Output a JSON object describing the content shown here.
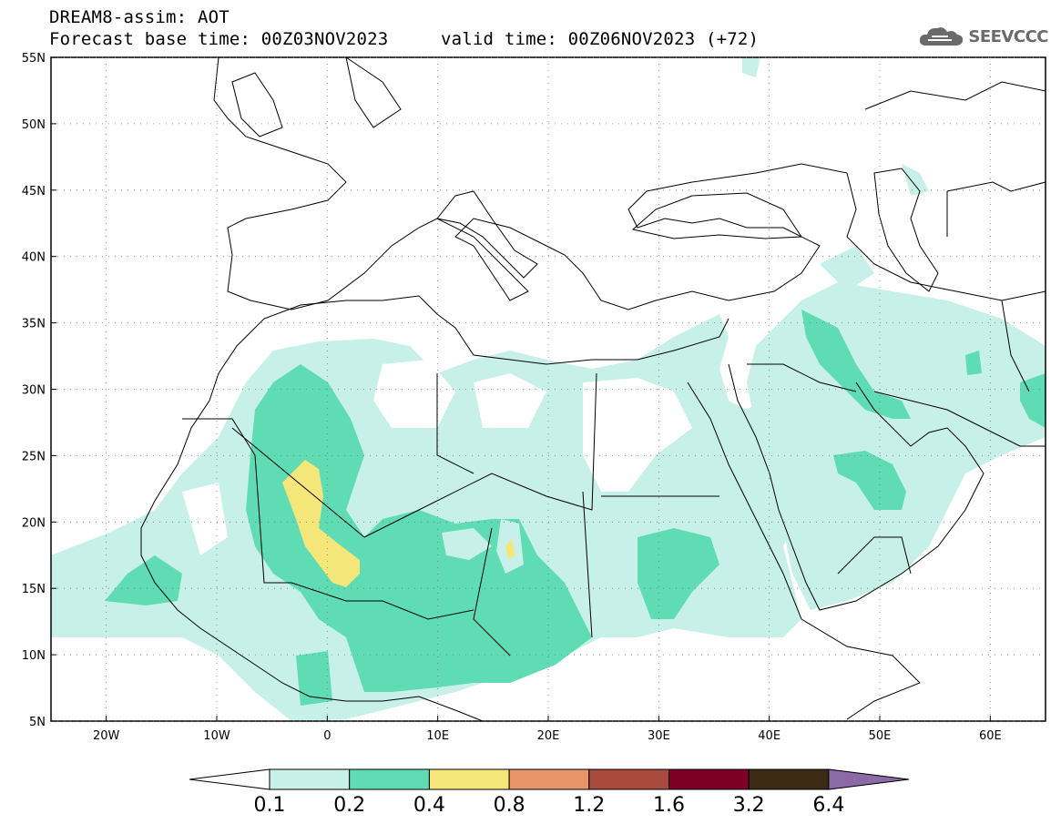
{
  "header": {
    "title": "DREAM8-assim: AOT",
    "base_time": "Forecast base time: 00Z03NOV2023",
    "valid_time": "valid time: 00Z06NOV2023 (+72)"
  },
  "logo": {
    "text": "SEEVCCC",
    "icon": "cloud-icon"
  },
  "map": {
    "lon_range": [
      -25,
      65
    ],
    "lat_range": [
      5,
      55
    ],
    "lon_ticks": [
      {
        "value": -20,
        "label": "20W"
      },
      {
        "value": -10,
        "label": "10W"
      },
      {
        "value": 0,
        "label": "0"
      },
      {
        "value": 10,
        "label": "10E"
      },
      {
        "value": 20,
        "label": "20E"
      },
      {
        "value": 30,
        "label": "30E"
      },
      {
        "value": 40,
        "label": "40E"
      },
      {
        "value": 50,
        "label": "50E"
      },
      {
        "value": 60,
        "label": "60E"
      }
    ],
    "lat_ticks": [
      {
        "value": 5,
        "label": "5N"
      },
      {
        "value": 10,
        "label": "10N"
      },
      {
        "value": 15,
        "label": "15N"
      },
      {
        "value": 20,
        "label": "20N"
      },
      {
        "value": 25,
        "label": "25N"
      },
      {
        "value": 30,
        "label": "30N"
      },
      {
        "value": 35,
        "label": "35N"
      },
      {
        "value": 40,
        "label": "40N"
      },
      {
        "value": 45,
        "label": "45N"
      },
      {
        "value": 50,
        "label": "50N"
      },
      {
        "value": 55,
        "label": "55N"
      }
    ],
    "grid": "dotted"
  },
  "colorbar": {
    "levels": [
      "0.1",
      "0.2",
      "0.4",
      "0.8",
      "1.2",
      "1.6",
      "3.2",
      "6.4"
    ],
    "colors": [
      "#ffffff",
      "#c7f0e8",
      "#5fdcb4",
      "#f5e67a",
      "#e89468",
      "#a84b3e",
      "#7d0024",
      "#3d2a14",
      "#8c6aa6"
    ]
  }
}
